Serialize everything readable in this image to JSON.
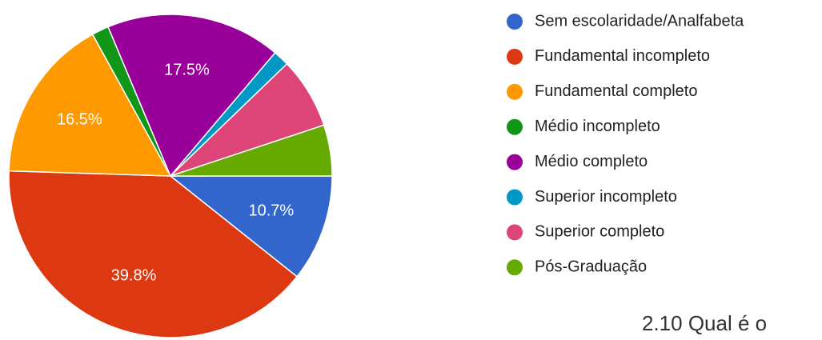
{
  "chart_data": {
    "type": "pie",
    "categories": [
      "Sem escolaridade/Analfabeta",
      "Fundamental incompleto",
      "Fundamental completo",
      "Médio incompleto",
      "Médio completo",
      "Superior incompleto",
      "Superior completo",
      "Pós-Graduação"
    ],
    "values": [
      10.7,
      39.8,
      16.5,
      1.7,
      17.5,
      1.6,
      7.1,
      5.1
    ],
    "value_labels": [
      "10.7%",
      "39.8%",
      "16.5%",
      null,
      "17.5%",
      null,
      null,
      null
    ],
    "colors": [
      "#3366cc",
      "#dc3912",
      "#ff9900",
      "#109618",
      "#990099",
      "#0099c6",
      "#dd4477",
      "#66aa00"
    ],
    "legend": "right",
    "annotation": "2.10 Qual é o"
  }
}
